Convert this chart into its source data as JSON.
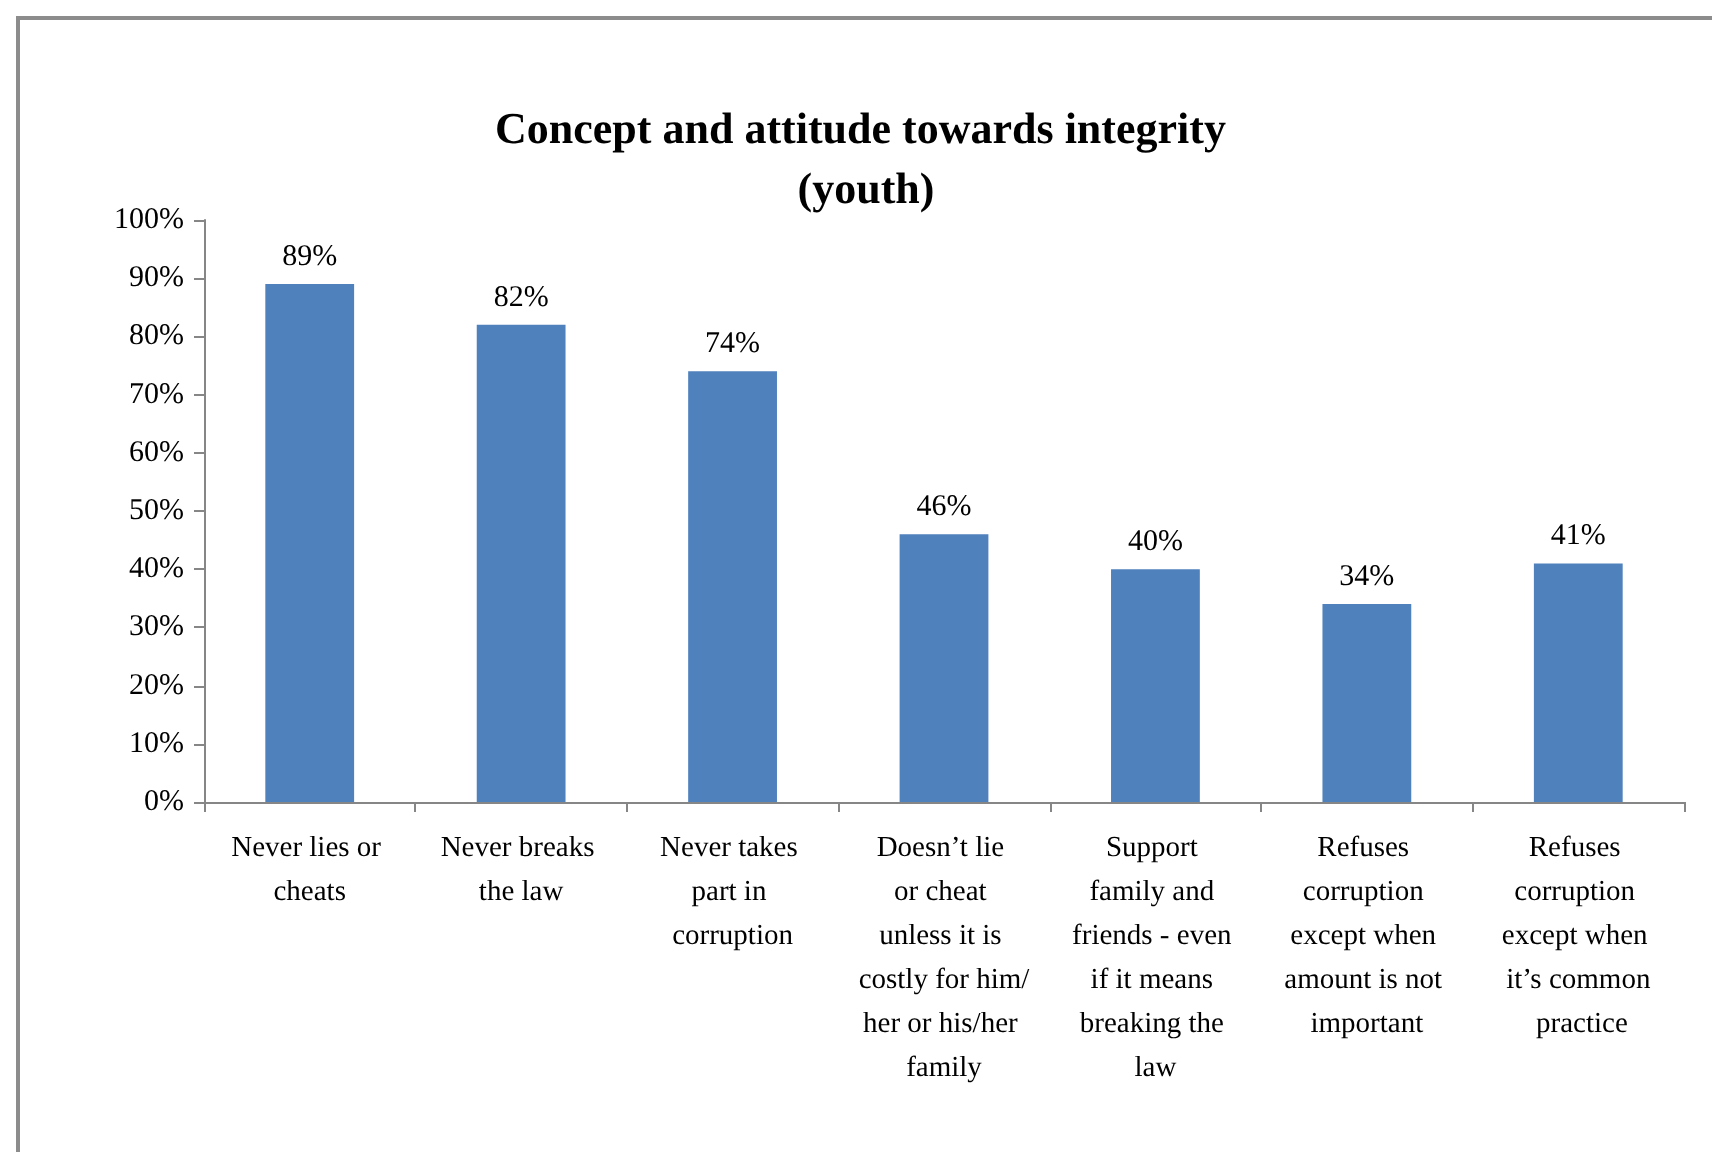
{
  "chart_data": {
    "type": "bar",
    "title": "Concept and attitude towards integrity (youth)",
    "categories": [
      "Never lies or cheats",
      "Never breaks the law",
      "Never takes part in corruption",
      "Doesn’t lie or cheat unless it is costly for him/her or his/her family",
      "Support family and friends - even if it means breaking the law",
      "Refuses corruption except when amount is not important",
      "Refuses corruption except when it’s common practice"
    ],
    "values": [
      89,
      82,
      74,
      46,
      40,
      34,
      41
    ],
    "value_labels": [
      "89%",
      "82%",
      "74%",
      "46%",
      "40%",
      "34%",
      "41%"
    ],
    "color": "#4f81bd",
    "ylim": [
      0,
      100
    ],
    "yticks": [
      {
        "value": 0,
        "label": "0%"
      },
      {
        "value": 10,
        "label": "10%"
      },
      {
        "value": 20,
        "label": "20%"
      },
      {
        "value": 30,
        "label": "30%"
      },
      {
        "value": 40,
        "label": "40%"
      },
      {
        "value": 50,
        "label": "50%"
      },
      {
        "value": 60,
        "label": "60%"
      },
      {
        "value": 70,
        "label": "70%"
      },
      {
        "value": 80,
        "label": "80%"
      },
      {
        "value": 90,
        "label": "90%"
      },
      {
        "value": 100,
        "label": "100%"
      }
    ]
  }
}
